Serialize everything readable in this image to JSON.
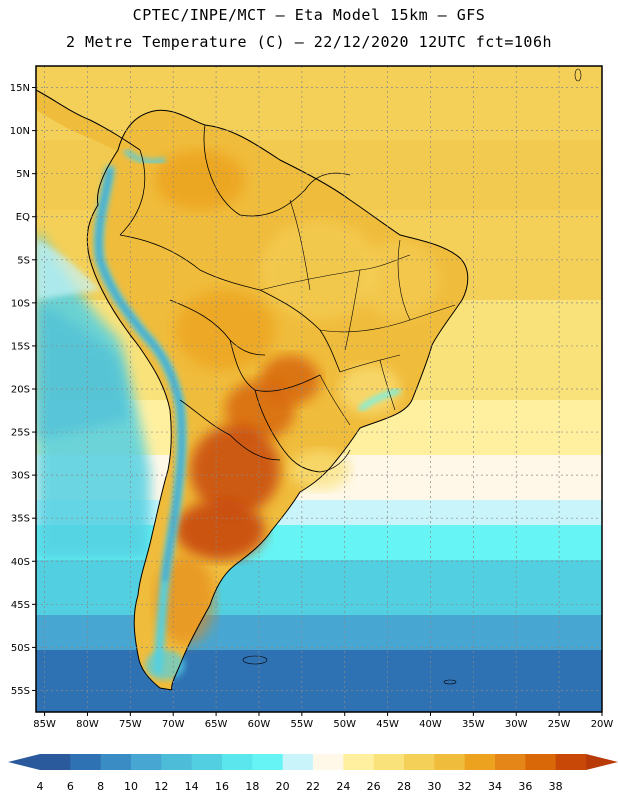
{
  "header": {
    "line1": "CPTEC/INPE/MCT —  Eta Model 15km — GFS",
    "line2": "2 Metre Temperature (C) — 22/12/2020 12UTC fct=106h"
  },
  "axes": {
    "lat_labels": [
      "15N",
      "10N",
      "5N",
      "EQ",
      "5S",
      "10S",
      "15S",
      "20S",
      "25S",
      "30S",
      "35S",
      "40S",
      "45S",
      "50S",
      "55S"
    ],
    "lat_values": [
      15,
      10,
      5,
      0,
      -5,
      -10,
      -15,
      -20,
      -25,
      -30,
      -35,
      -40,
      -45,
      -50,
      -55
    ],
    "lon_labels": [
      "85W",
      "80W",
      "75W",
      "70W",
      "65W",
      "60W",
      "55W",
      "50W",
      "45W",
      "40W",
      "35W",
      "30W",
      "25W",
      "20W"
    ],
    "lon_values": [
      -85,
      -80,
      -75,
      -70,
      -65,
      -60,
      -55,
      -50,
      -45,
      -40,
      -35,
      -30,
      -25,
      -20
    ],
    "lat_range": [
      -57.5,
      17.5
    ],
    "lon_range": [
      -86,
      -20
    ]
  },
  "colorbar": {
    "labels": [
      "4",
      "6",
      "8",
      "10",
      "12",
      "14",
      "16",
      "18",
      "20",
      "22",
      "24",
      "26",
      "28",
      "30",
      "32",
      "34",
      "36",
      "38"
    ],
    "colors": [
      "#2a5a9c",
      "#2f72b4",
      "#3a8cc4",
      "#48a6d2",
      "#4cbcd8",
      "#52d0e2",
      "#5ae6ec",
      "#66f4f4",
      "#c8f4fa",
      "#fff8e8",
      "#fff0a0",
      "#fae27a",
      "#f4d058",
      "#f0bc3c",
      "#eca21e",
      "#e48618",
      "#d86808",
      "#c84808",
      "#b83a08"
    ]
  }
}
